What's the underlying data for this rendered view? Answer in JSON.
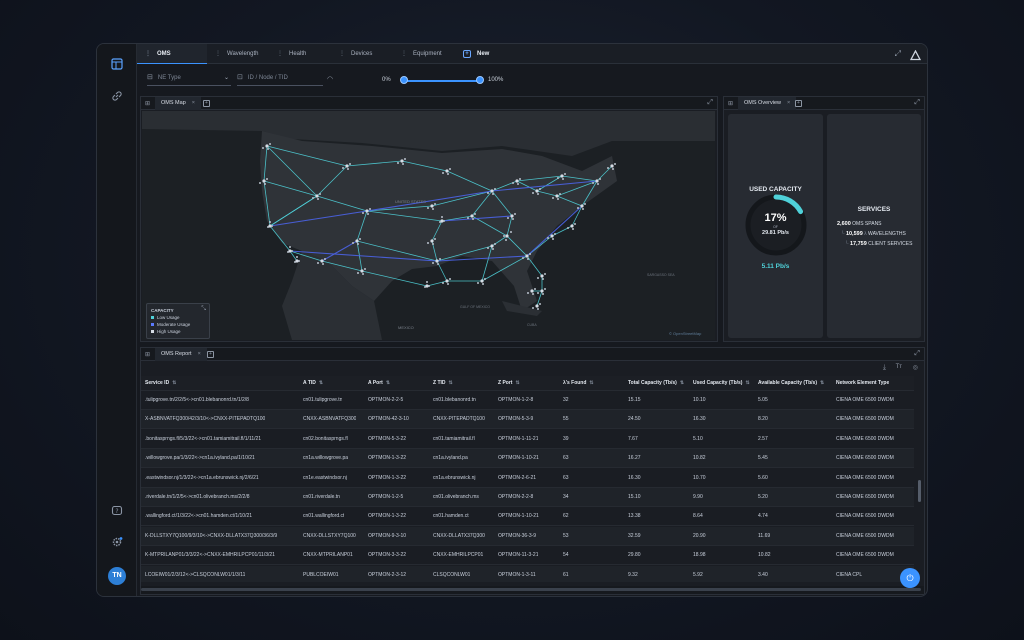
{
  "tabs": [
    {
      "label": "OMS",
      "active": true
    },
    {
      "label": "Wavelength",
      "active": false
    },
    {
      "label": "Health",
      "active": false
    },
    {
      "label": "Devices",
      "active": false
    },
    {
      "label": "Equipment",
      "active": false
    }
  ],
  "new_tab_label": "New",
  "filters": {
    "ne_type_placeholder": "NE Type",
    "id_placeholder": "ID / Node / TID",
    "slider_min_label": "0%",
    "slider_max_label": "100%",
    "slider_range": [
      0,
      100
    ]
  },
  "map_panel": {
    "tab_label": "OMS Map",
    "legend_title": "CAPACITY",
    "legend_items": [
      {
        "label": "Low Usage",
        "color": "#4fd1d9"
      },
      {
        "label": "Moderate Usage",
        "color": "#5b7bff"
      },
      {
        "label": "High Usage",
        "color": "#d6dce5"
      }
    ],
    "place_labels": [
      "UNITED STATES",
      "MEXICO",
      "GULF OF MEXICO",
      "CUBA",
      "SARGASSO SEA"
    ],
    "attribution": "© OpenStreetMap"
  },
  "overview_panel": {
    "tab_label": "OMS Overview",
    "used_capacity_title": "USED CAPACITY",
    "used_percent": "17%",
    "used_percent_value": 0.17,
    "of_label": "OF",
    "total_capacity": "29.81 Pb/s",
    "used_value": "5.11 Pb/s",
    "services_title": "SERVICES",
    "services": [
      {
        "count": "2,600",
        "label": "OMS SPANS"
      },
      {
        "count": "10,599",
        "label": "WAVELENGTHS"
      },
      {
        "count": "17,759",
        "label": "CLIENT SERVICES"
      }
    ]
  },
  "report_panel": {
    "tab_label": "OMS Report",
    "columns": [
      "Service ID",
      "A TID",
      "A Port",
      "Z TID",
      "Z Port",
      "λ's Found",
      "Total Capacity (Tb/s)",
      "Used Capacity (Tb/s)",
      "Available Capacity (Tb/s)",
      "Network Element Type"
    ],
    "rows": [
      [
        ".tulipgrove.tn/2/2/5<->cn01.blebanonrd.tn/1/2/8",
        "cn01.tulipgrove.tn",
        "OPTMON-2-2-5",
        "cn01.blebanonrd.tn",
        "OPTMON-1-2-8",
        "32",
        "15.15",
        "10.10",
        "5.05",
        "CIENA OME 6500 DWDM"
      ],
      [
        "X-ASBNVATFQ300/42/3/10<->CNXX-PITEPADTQ100",
        "CNXX-ASBNVATFQ300",
        "OPTMON-42-3-10",
        "CNXX-PITEPADTQ100",
        "OPTMON-5-3-9",
        "55",
        "24.50",
        "16.30",
        "8.20",
        "CIENA OME 6500 DWDM"
      ],
      [
        ".bonitasprngs.fl/5/3/22<->cn01.tamiamitrail.fl/1/11/21",
        "cn02.bonitasprngs.fl",
        "OPTMON-5-3-22",
        "cn01.tamiamitrail.fl",
        "OPTMON-1-11-21",
        "39",
        "7.67",
        "5.10",
        "2.57",
        "CIENA OME 6500 DWDM"
      ],
      [
        ".willowgrove.pa/1/3/22<->cn1a.ivyland.pa/1/10/21",
        "cn1a.willowgrove.pa",
        "OPTMON-1-3-22",
        "cn1a.ivyland.pa",
        "OPTMON-1-10-21",
        "63",
        "16.27",
        "10.82",
        "5.45",
        "CIENA OME 6500 DWDM"
      ],
      [
        ".eastwindsor.nj/1/3/22<->cn1a.ebrunswick.nj/2/6/21",
        "cn1e.eastwindsor.nj",
        "OPTMON-1-3-22",
        "cn1a.ebrunswick.nj",
        "OPTMON-2-6-21",
        "63",
        "16.30",
        "10.70",
        "5.60",
        "CIENA OME 6500 DWDM"
      ],
      [
        ".riverdale.tn/1/2/5<->cn01.olivebranch.ms/2/2/8",
        "cn01.riverdale.tn",
        "OPTMON-1-2-5",
        "cn01.olivebranch.ms",
        "OPTMON-2-2-8",
        "34",
        "15.10",
        "9.90",
        "5.20",
        "CIENA OME 6500 DWDM"
      ],
      [
        ".wallingford.ct/1/3/22<->cn01.hamden.ct/1/10/21",
        "cn01.wallingford.ct",
        "OPTMON-1-3-22",
        "cn01.hamden.ct",
        "OPTMON-1-10-21",
        "62",
        "13.38",
        "8.64",
        "4.74",
        "CIENA OME 6500 DWDM"
      ],
      [
        "K-DLLSTXY7Q100/9/3/10<->CNXX-DLLATX37Q300/36/3/9",
        "CNXX-DLLSTXY7Q100",
        "OPTMON-9-3-10",
        "CNXX-DLLATX37Q300",
        "OPTMON-36-3-9",
        "53",
        "32.59",
        "20.90",
        "11.69",
        "CIENA OME 6500 DWDM"
      ],
      [
        "K-MTPRILANP01/3/3/22<->CNXX-EMHRILPCP01/11/3/21",
        "CNXX-MTPRILANP01",
        "OPTMON-3-3-22",
        "CNXX-EMHRILPCP01",
        "OPTMON-11-3-21",
        "54",
        "29.80",
        "18.98",
        "10.82",
        "CIENA OME 6500 DWDM"
      ],
      [
        "LCOEIW01/2/3/12<->CLSQCONLW01/1/3/11",
        "PUBLCOEIW01",
        "OPTMON-2-3-12",
        "CLSQCONLW01",
        "OPTMON-1-3-11",
        "61",
        "9.32",
        "5.92",
        "3.40",
        "CIENA CPL"
      ]
    ]
  },
  "user": {
    "initials": "TN"
  },
  "colors": {
    "accent": "#3b93ff",
    "teal": "#4fd1d9"
  }
}
